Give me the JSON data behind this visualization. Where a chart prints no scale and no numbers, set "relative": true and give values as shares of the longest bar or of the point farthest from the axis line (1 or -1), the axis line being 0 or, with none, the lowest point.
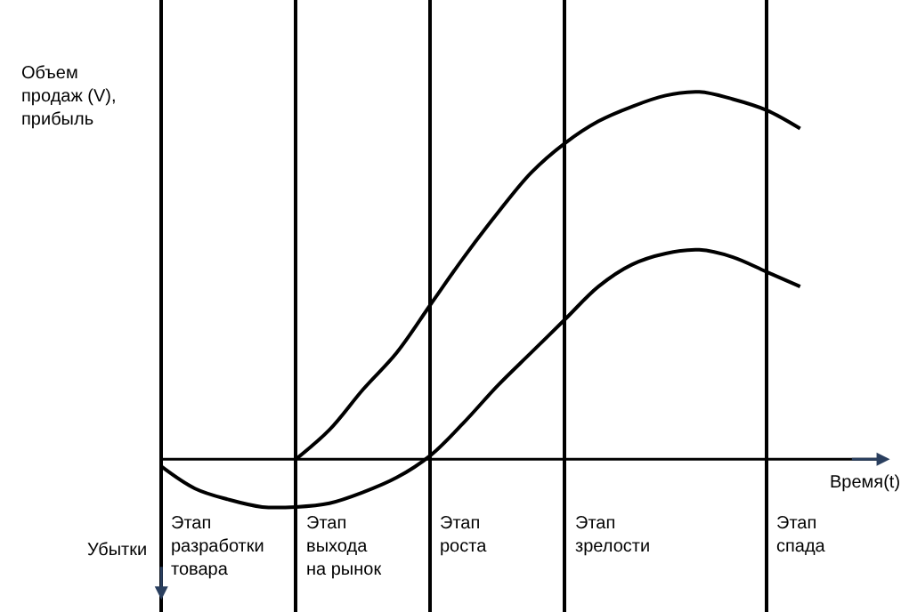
{
  "chart_data": {
    "type": "line",
    "relative": true,
    "ylabel": "Объем\nпродаж (V),\nприбыль",
    "xlabel": "Время(t)",
    "categories": [
      null,
      null,
      null,
      null,
      null,
      null,
      null,
      null,
      null,
      null,
      null,
      null,
      null,
      null,
      null,
      null,
      null,
      null,
      null,
      null
    ],
    "series": [
      {
        "color": "#000000",
        "values": [
          null,
          null,
          null,
          null,
          0,
          0.08,
          0.19,
          0.29,
          0.42,
          0.55,
          0.67,
          0.78,
          0.86,
          0.92,
          0.96,
          0.99,
          1,
          0.98,
          0.95,
          0.9
        ]
      },
      {
        "color": "#000000",
        "values": [
          -0.02,
          -0.08,
          -0.11,
          -0.13,
          -0.13,
          -0.12,
          -0.09,
          -0.05,
          0.01,
          0.1,
          0.2,
          0.29,
          0.38,
          0.47,
          0.53,
          0.56,
          0.57,
          0.55,
          0.51,
          0.47
        ]
      }
    ],
    "annotations": [
      "Этап\nразработки\nтовара",
      "Этап\nвыхода\nна рынок",
      "Этап\nроста",
      "Этап\nзрелости",
      "Этап\nспада",
      "Убытки"
    ],
    "line_style": "solid",
    "marker": "none",
    "grid": "x",
    "tick_labels": false
  }
}
